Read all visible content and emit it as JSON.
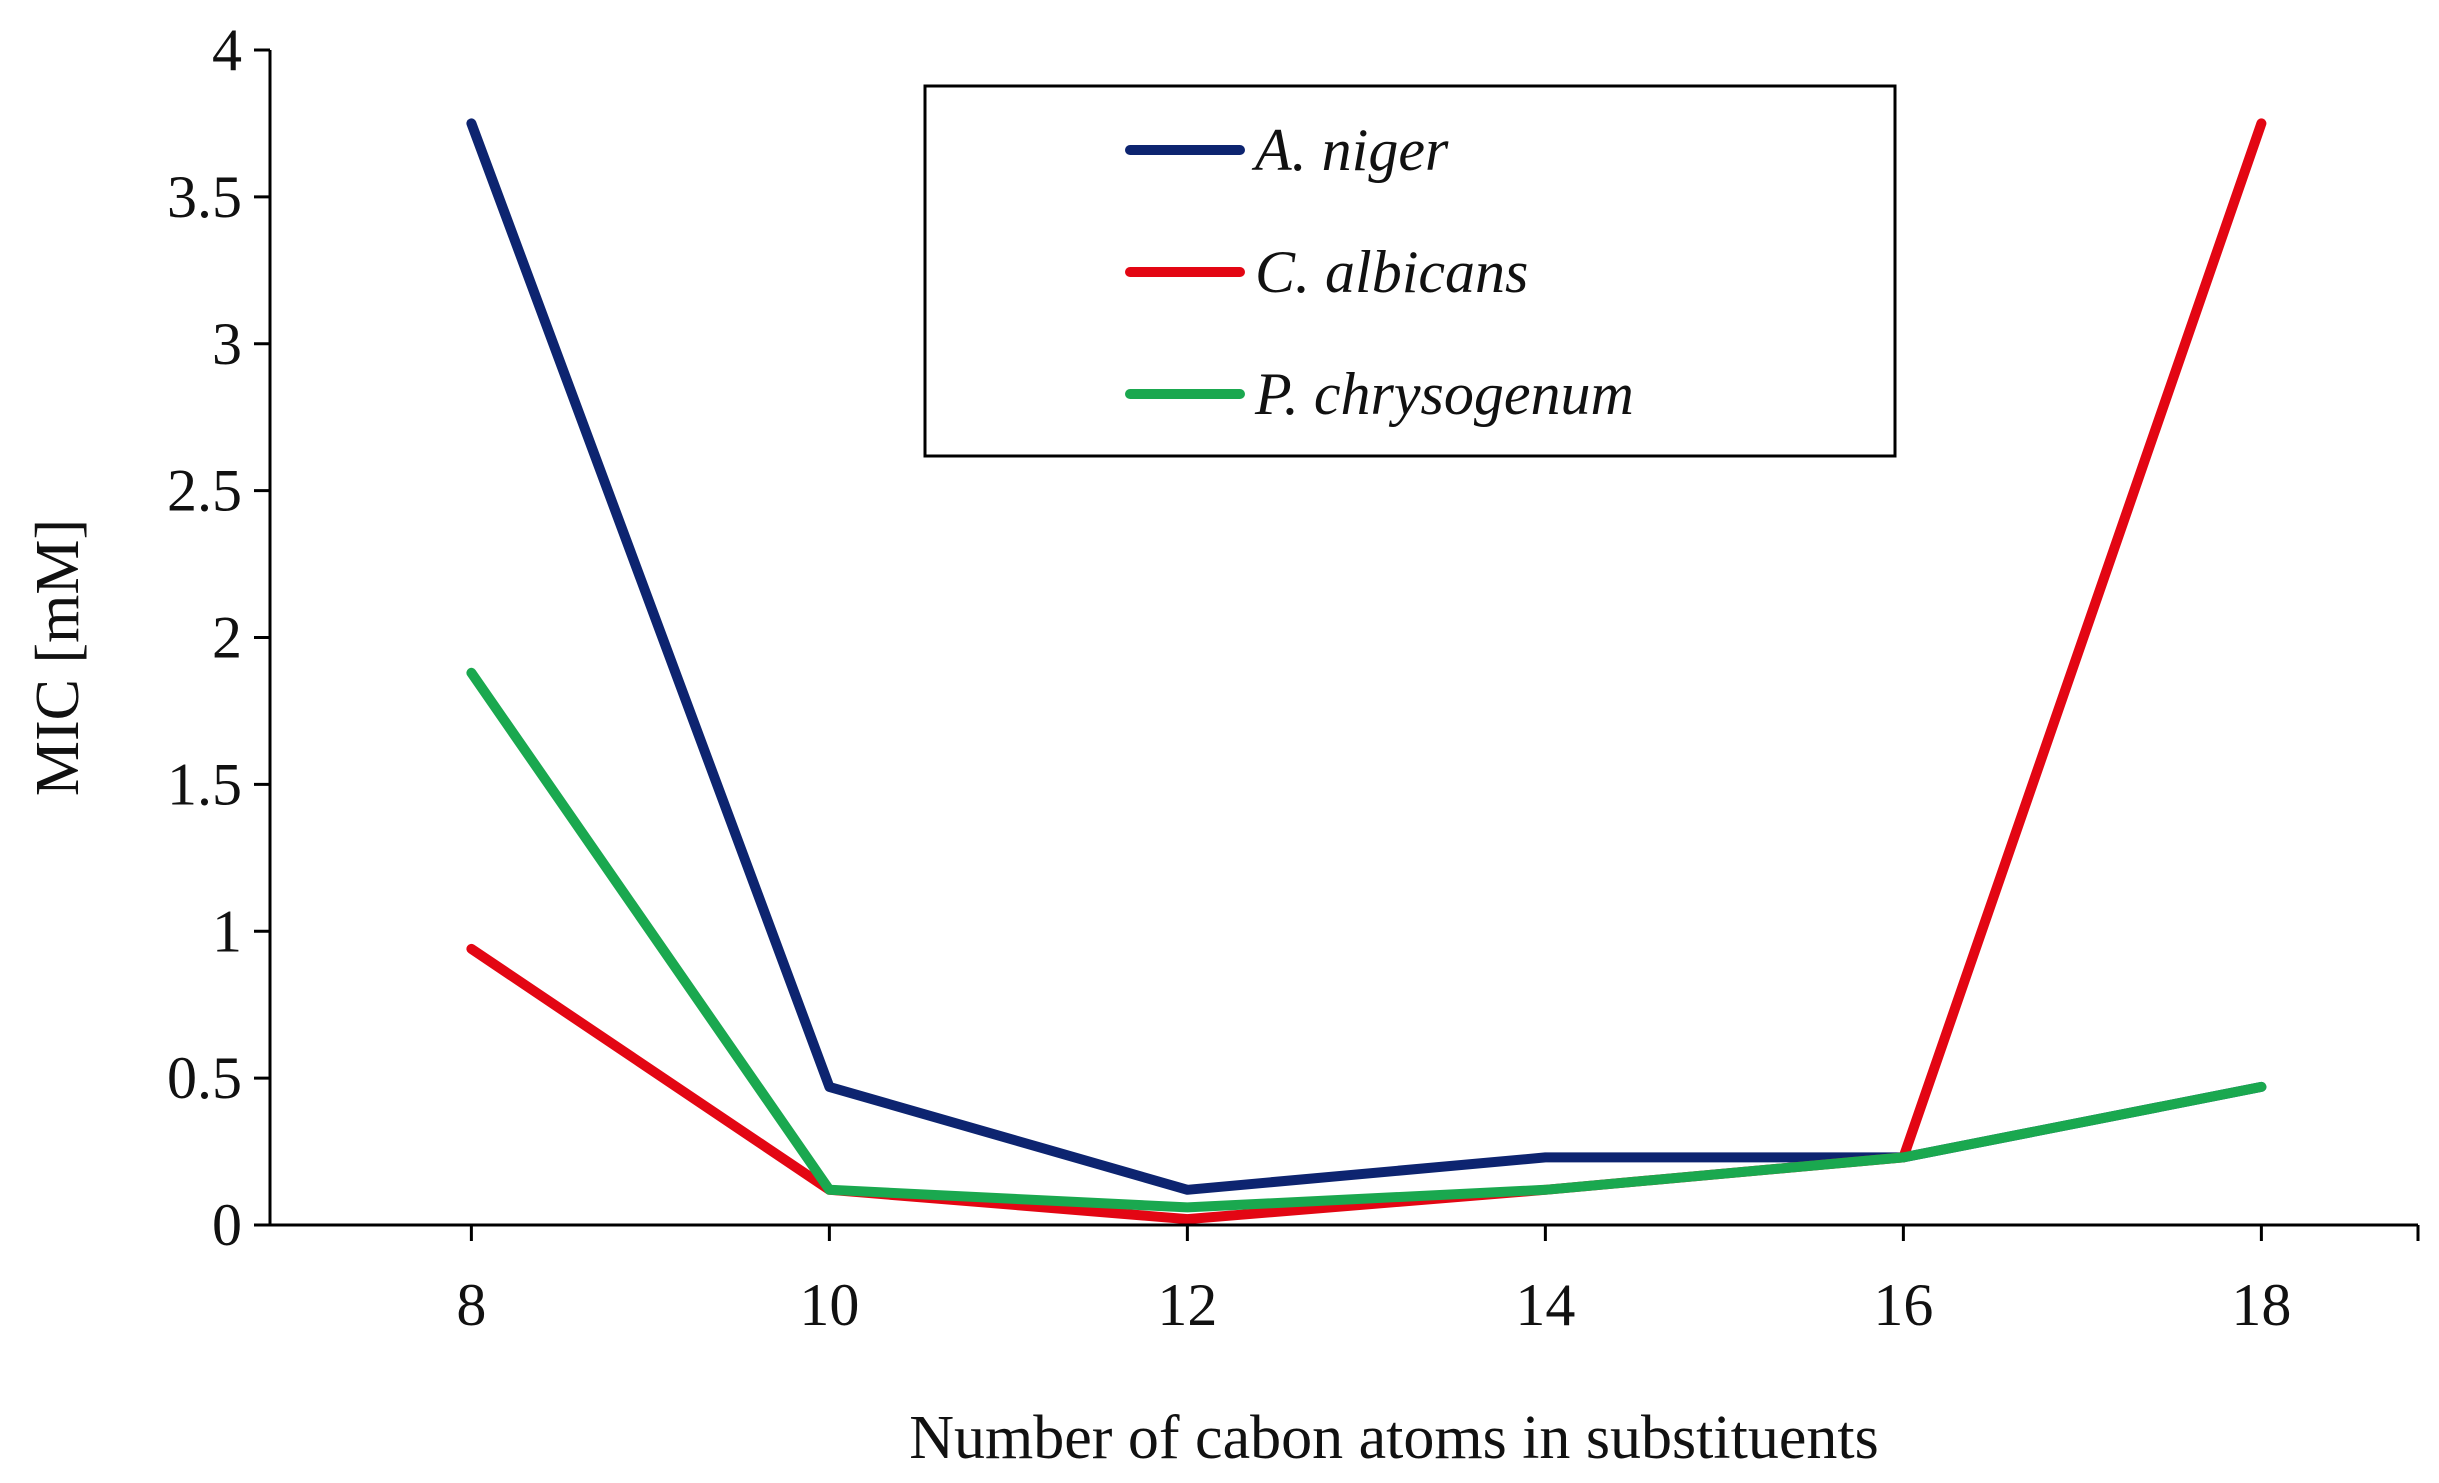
{
  "chart_data": {
    "type": "line",
    "x": [
      8,
      10,
      12,
      14,
      16,
      18
    ],
    "xticks": [
      "8",
      "10",
      "12",
      "14",
      "16",
      "18"
    ],
    "xlim": [
      6.875,
      18.875
    ],
    "ylim": [
      0,
      4
    ],
    "yticks": [
      "0",
      "0.5",
      "1",
      "1.5",
      "2",
      "2.5",
      "3",
      "3.5",
      "4"
    ],
    "xlabel": "Number of cabon atoms in substituents",
    "ylabel": "MIC [mM]",
    "grid": false,
    "legend_position": "top-center",
    "series": [
      {
        "name": "A. niger",
        "color": "#0d2470",
        "values": [
          3.75,
          0.47,
          0.12,
          0.23,
          0.23,
          0.47
        ]
      },
      {
        "name": "C. albicans",
        "color": "#e30613",
        "values": [
          0.94,
          0.12,
          0.02,
          0.12,
          0.23,
          3.75
        ]
      },
      {
        "name": "P. chrysogenum",
        "color": "#1aa84f",
        "values": [
          1.88,
          0.12,
          0.06,
          0.12,
          0.23,
          0.47
        ]
      }
    ]
  }
}
